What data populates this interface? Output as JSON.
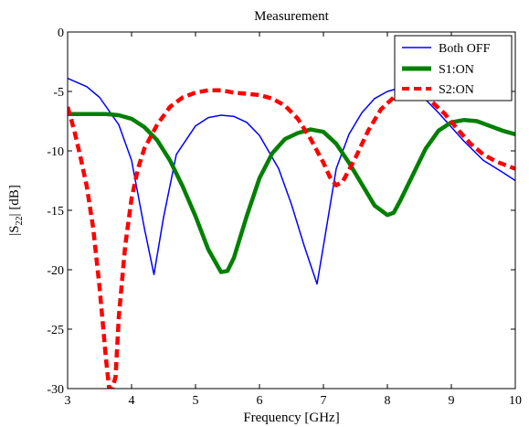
{
  "chart_data": {
    "type": "line",
    "title": "Measurement",
    "xlabel": "Frequency [GHz]",
    "ylabel_main": "|S",
    "ylabel_sub": "22",
    "ylabel_tail": "| [dB]",
    "xlim": [
      3,
      10
    ],
    "ylim": [
      -30,
      0
    ],
    "xticks": [
      3,
      4,
      5,
      6,
      7,
      8,
      9,
      10
    ],
    "yticks": [
      0,
      -5,
      -10,
      -15,
      -20,
      -25,
      -30
    ],
    "grid": false,
    "legend_position": "top-right",
    "series": [
      {
        "name": "Both OFF",
        "color": "#0000ff",
        "style": "solid",
        "weight": "thin",
        "x": [
          3.0,
          3.3,
          3.5,
          3.8,
          4.0,
          4.2,
          4.35,
          4.5,
          4.7,
          5.0,
          5.2,
          5.4,
          5.6,
          5.8,
          6.0,
          6.3,
          6.5,
          6.7,
          6.9,
          7.0,
          7.2,
          7.4,
          7.6,
          7.8,
          8.0,
          8.2,
          8.4,
          8.6,
          8.8,
          9.0,
          9.2,
          9.5,
          9.8,
          10.0
        ],
        "y": [
          -3.9,
          -4.6,
          -5.5,
          -7.8,
          -10.8,
          -16.5,
          -20.4,
          -15.6,
          -10.3,
          -7.9,
          -7.2,
          -7.0,
          -7.1,
          -7.6,
          -8.7,
          -11.5,
          -14.5,
          -18.0,
          -21.2,
          -18.0,
          -11.5,
          -8.6,
          -6.8,
          -5.6,
          -5.0,
          -4.7,
          -4.9,
          -5.7,
          -6.8,
          -8.0,
          -9.2,
          -10.8,
          -11.8,
          -12.5
        ]
      },
      {
        "name": "S1:ON",
        "color": "#008000",
        "style": "solid",
        "weight": "thick",
        "x": [
          3.0,
          3.3,
          3.6,
          3.8,
          4.0,
          4.2,
          4.4,
          4.6,
          4.8,
          5.0,
          5.2,
          5.4,
          5.5,
          5.6,
          5.8,
          6.0,
          6.2,
          6.4,
          6.6,
          6.8,
          7.0,
          7.2,
          7.4,
          7.6,
          7.8,
          8.0,
          8.1,
          8.2,
          8.4,
          8.6,
          8.8,
          9.0,
          9.2,
          9.4,
          9.6,
          9.8,
          10.0
        ],
        "y": [
          -6.9,
          -6.9,
          -6.9,
          -7.0,
          -7.3,
          -8.0,
          -9.1,
          -10.8,
          -13.0,
          -15.5,
          -18.3,
          -20.2,
          -20.1,
          -19.0,
          -15.5,
          -12.3,
          -10.2,
          -9.0,
          -8.5,
          -8.2,
          -8.4,
          -9.4,
          -11.0,
          -12.8,
          -14.6,
          -15.4,
          -15.2,
          -14.2,
          -12.0,
          -9.8,
          -8.3,
          -7.6,
          -7.4,
          -7.5,
          -7.9,
          -8.3,
          -8.6
        ]
      },
      {
        "name": "S2:ON",
        "color": "#ff0000",
        "style": "dashed",
        "weight": "thick",
        "x": [
          3.0,
          3.1,
          3.2,
          3.3,
          3.4,
          3.5,
          3.6,
          3.65,
          3.7,
          3.75,
          3.8,
          3.9,
          4.0,
          4.1,
          4.2,
          4.4,
          4.6,
          4.8,
          5.0,
          5.2,
          5.4,
          5.6,
          5.8,
          6.0,
          6.2,
          6.4,
          6.6,
          6.8,
          7.0,
          7.1,
          7.2,
          7.3,
          7.5,
          7.7,
          7.9,
          8.1,
          8.3,
          8.5,
          8.7,
          8.9,
          9.1,
          9.3,
          9.5,
          9.7,
          10.0
        ],
        "y": [
          -6.3,
          -8.2,
          -10.5,
          -13.0,
          -16.5,
          -21.5,
          -27.5,
          -30.0,
          -30.0,
          -29.0,
          -24.0,
          -18.0,
          -14.0,
          -11.5,
          -9.8,
          -7.8,
          -6.3,
          -5.5,
          -5.1,
          -4.9,
          -4.9,
          -5.1,
          -5.2,
          -5.3,
          -5.6,
          -6.2,
          -7.3,
          -9.0,
          -11.0,
          -12.2,
          -12.9,
          -12.6,
          -10.6,
          -8.3,
          -6.5,
          -5.5,
          -5.1,
          -5.2,
          -5.9,
          -6.9,
          -8.2,
          -9.4,
          -10.3,
          -10.9,
          -11.5
        ]
      }
    ]
  }
}
